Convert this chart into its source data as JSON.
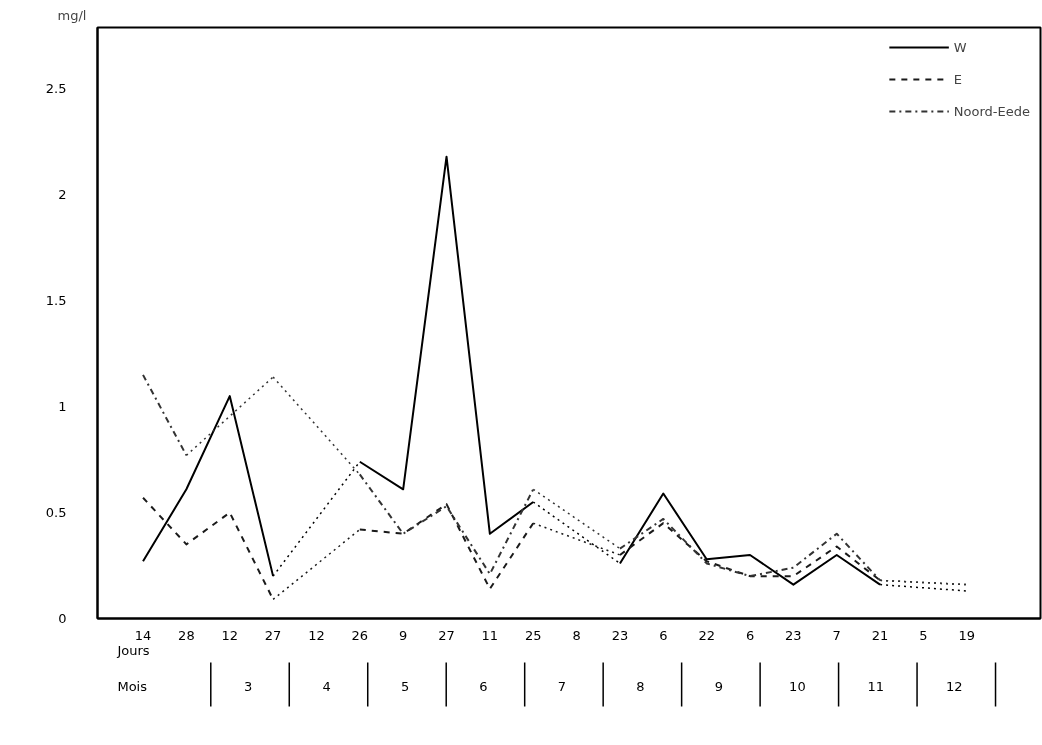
{
  "chart_data": {
    "type": "line",
    "ylabel": "mg/l",
    "categories": [
      "14",
      "28",
      "12",
      "27",
      "12",
      "26",
      "9",
      "27",
      "11",
      "25",
      "8",
      "23",
      "6",
      "22",
      "6",
      "23",
      "7",
      "21",
      "5",
      "19"
    ],
    "series": [
      {
        "name": "W",
        "color": "#000000",
        "line_style": "solid",
        "values": [
          0.27,
          0.61,
          1.05,
          0.2,
          null,
          0.74,
          0.61,
          2.18,
          0.4,
          0.55,
          null,
          0.26,
          0.59,
          0.28,
          0.3,
          0.16,
          0.3,
          0.16,
          null,
          0.13
        ]
      },
      {
        "name": "E",
        "color": "#1a1a1a",
        "line_style": "dashed",
        "values": [
          0.57,
          0.35,
          0.5,
          0.09,
          null,
          0.42,
          0.4,
          0.54,
          0.14,
          0.45,
          null,
          0.3,
          0.45,
          0.27,
          0.2,
          0.2,
          0.34,
          0.18,
          null,
          0.16
        ]
      },
      {
        "name": "Noord-Eede",
        "color": "#333333",
        "line_style": "dashdot",
        "values": [
          1.15,
          0.77,
          null,
          1.14,
          null,
          0.68,
          0.4,
          0.53,
          0.21,
          0.61,
          null,
          0.33,
          0.47,
          0.26,
          0.2,
          0.24,
          0.4,
          0.18,
          null,
          0.16
        ]
      }
    ],
    "ylim": [
      0,
      2.79
    ],
    "yticks": [
      0,
      0.5,
      1,
      1.5,
      2,
      2.5
    ],
    "annotations": [
      "Jours",
      "Mois",
      "3",
      "4",
      "5",
      "6",
      "7",
      "8",
      "9",
      "10",
      "11",
      "12"
    ],
    "grid": false,
    "legend": "top right",
    "marker": "none"
  }
}
